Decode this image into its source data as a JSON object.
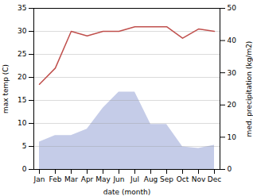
{
  "chart_data": {
    "type": "combo",
    "categories": [
      "Jan",
      "Feb",
      "Mar",
      "Apr",
      "May",
      "Jun",
      "Jul",
      "Aug",
      "Sep",
      "Oct",
      "Nov",
      "Dec"
    ],
    "xlabel": "date (month)",
    "ylabel": "max temp (C)",
    "y2label": "med. precipitation (kg/m2)",
    "series": [
      {
        "type": "area",
        "axis": "y2",
        "color": "#c5cce8",
        "values": [
          8.5,
          10.5,
          10.5,
          12.5,
          19.0,
          24.0,
          24.0,
          14.0,
          14.0,
          7.0,
          6.5,
          7.5
        ]
      },
      {
        "type": "line",
        "color": "#c0504d",
        "values": [
          18.5,
          22.0,
          30.0,
          29.0,
          30.0,
          30.0,
          31.0,
          31.0,
          31.0,
          28.5,
          30.5,
          30.0
        ]
      }
    ],
    "ylim": [
      0,
      35
    ],
    "yticks": [
      0,
      5,
      10,
      15,
      20,
      25,
      30,
      35
    ],
    "y2lim": [
      0,
      50
    ],
    "y2ticks": [
      0,
      10,
      20,
      30,
      40,
      50
    ],
    "grid": true
  }
}
